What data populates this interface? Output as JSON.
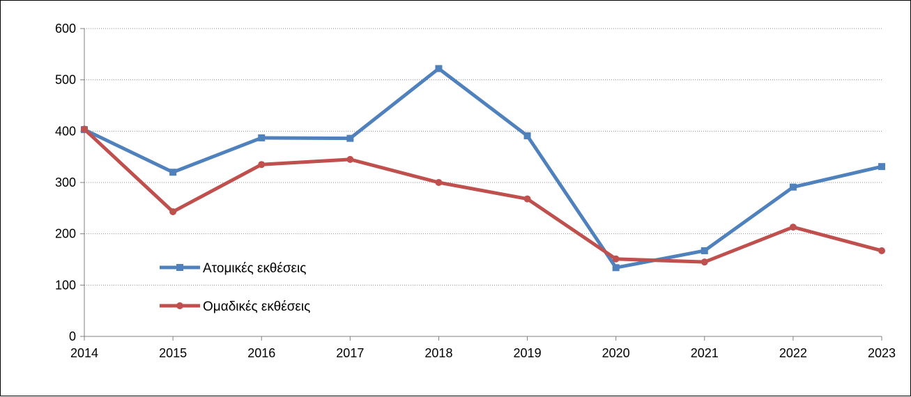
{
  "chart_data": {
    "type": "line",
    "categories": [
      "2014",
      "2015",
      "2016",
      "2017",
      "2018",
      "2019",
      "2020",
      "2021",
      "2022",
      "2023"
    ],
    "series": [
      {
        "name": "Ατομικές εκθέσεις",
        "values": [
          403,
          320,
          387,
          386,
          522,
          391,
          134,
          167,
          291,
          331
        ],
        "color": "#4F81BD",
        "marker": "square"
      },
      {
        "name": "Ομαδικές εκθέσεις",
        "values": [
          404,
          243,
          335,
          345,
          300,
          268,
          151,
          145,
          213,
          167
        ],
        "color": "#C0504D",
        "marker": "circle"
      }
    ],
    "ylim": [
      0,
      600
    ],
    "yticks": [
      0,
      100,
      200,
      300,
      400,
      500,
      600
    ],
    "grid": "horizontal-dotted",
    "legend_position": "inside-bottom-left"
  }
}
